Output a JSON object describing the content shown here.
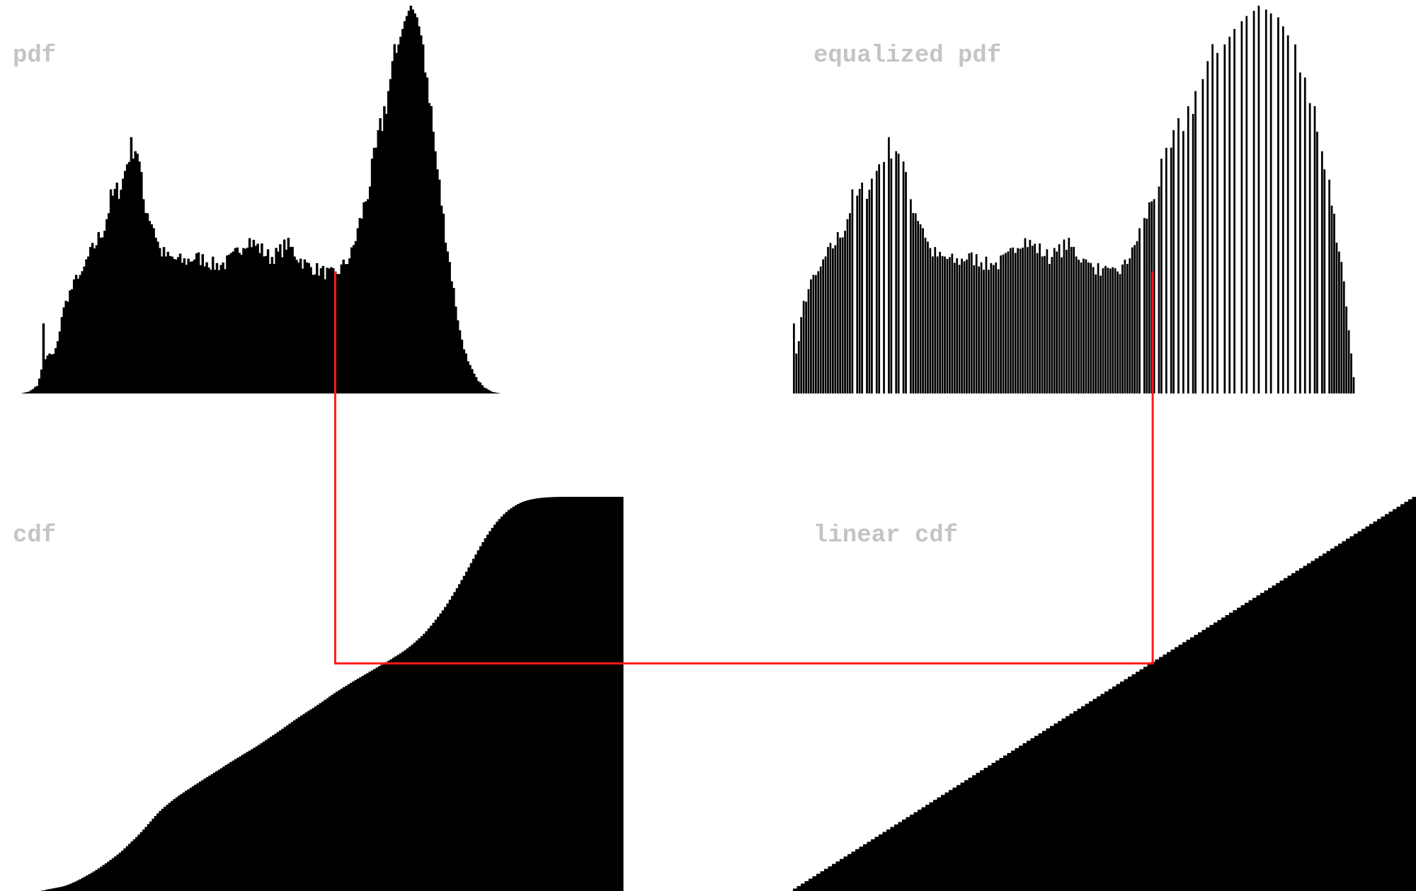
{
  "colors": {
    "background": "#ffffff",
    "fill": "#000000",
    "label": "#c4c4c4",
    "connector": "#ff1a1a"
  },
  "labels": {
    "pdf": "pdf",
    "equalized_pdf": "equalized pdf",
    "cdf": "cdf",
    "linear_cdf": "linear cdf"
  },
  "chart_data": [
    {
      "id": "pdf",
      "type": "bar",
      "title": "pdf",
      "xlabel": "",
      "ylabel": "",
      "x_range": [
        0,
        255
      ],
      "y_range": [
        0,
        1
      ],
      "note_values": "relative histogram heights (peak = 1.0)",
      "control_points": [
        [
          0,
          0.0
        ],
        [
          4,
          0.005
        ],
        [
          8,
          0.02
        ],
        [
          10,
          0.06
        ],
        [
          11,
          0.18
        ],
        [
          12,
          0.09
        ],
        [
          14,
          0.1
        ],
        [
          16,
          0.1
        ],
        [
          18,
          0.13
        ],
        [
          20,
          0.2
        ],
        [
          23,
          0.25
        ],
        [
          26,
          0.28
        ],
        [
          28,
          0.31
        ],
        [
          30,
          0.3
        ],
        [
          32,
          0.34
        ],
        [
          35,
          0.37
        ],
        [
          38,
          0.4
        ],
        [
          41,
          0.43
        ],
        [
          44,
          0.5
        ],
        [
          47,
          0.52
        ],
        [
          50,
          0.55
        ],
        [
          53,
          0.62
        ],
        [
          55,
          0.64
        ],
        [
          57,
          0.63
        ],
        [
          60,
          0.5
        ],
        [
          62,
          0.47
        ],
        [
          65,
          0.43
        ],
        [
          68,
          0.37
        ],
        [
          72,
          0.35
        ],
        [
          76,
          0.345
        ],
        [
          80,
          0.34
        ],
        [
          85,
          0.35
        ],
        [
          90,
          0.345
        ],
        [
          95,
          0.33
        ],
        [
          100,
          0.335
        ],
        [
          104,
          0.35
        ],
        [
          108,
          0.38
        ],
        [
          111,
          0.4
        ],
        [
          114,
          0.385
        ],
        [
          118,
          0.37
        ],
        [
          122,
          0.35
        ],
        [
          126,
          0.36
        ],
        [
          130,
          0.385
        ],
        [
          133,
          0.37
        ],
        [
          136,
          0.35
        ],
        [
          140,
          0.33
        ],
        [
          145,
          0.32
        ],
        [
          150,
          0.31
        ],
        [
          154,
          0.305
        ],
        [
          158,
          0.33
        ],
        [
          162,
          0.36
        ],
        [
          165,
          0.42
        ],
        [
          170,
          0.52
        ],
        [
          175,
          0.65
        ],
        [
          180,
          0.78
        ],
        [
          184,
          0.88
        ],
        [
          188,
          0.96
        ],
        [
          191,
          1.0
        ],
        [
          194,
          0.97
        ],
        [
          197,
          0.9
        ],
        [
          200,
          0.78
        ],
        [
          203,
          0.62
        ],
        [
          207,
          0.45
        ],
        [
          211,
          0.3
        ],
        [
          215,
          0.16
        ],
        [
          219,
          0.08
        ],
        [
          223,
          0.04
        ],
        [
          227,
          0.015
        ],
        [
          231,
          0.004
        ],
        [
          235,
          0.0
        ]
      ]
    },
    {
      "id": "equalized_pdf",
      "type": "bar",
      "title": "equalized pdf",
      "xlabel": "",
      "ylabel": "",
      "x_range": [
        0,
        255
      ],
      "y_range": [
        0,
        1
      ],
      "note_values": "same heights as the pdf, remapped onto sparse output levels of the equalized image"
    },
    {
      "id": "cdf",
      "type": "area",
      "title": "cdf",
      "xlabel": "",
      "ylabel": "",
      "x_range": [
        0,
        255
      ],
      "y_range": [
        0,
        1
      ],
      "note_values": "cumulative sum of the pdf, normalised to 1.0"
    },
    {
      "id": "linear_cdf",
      "type": "area",
      "title": "linear cdf",
      "xlabel": "",
      "ylabel": "",
      "x_range": [
        0,
        255
      ],
      "y_range": [
        0,
        1
      ],
      "note_values": "cdf of the equalized histogram: straight ramp from 0 to 1, drawn as a staircase"
    }
  ],
  "mapping": {
    "input_level": 154,
    "note": "red connector: input level on pdf -> cdf value -> output level on linear cdf / equalized pdf"
  }
}
